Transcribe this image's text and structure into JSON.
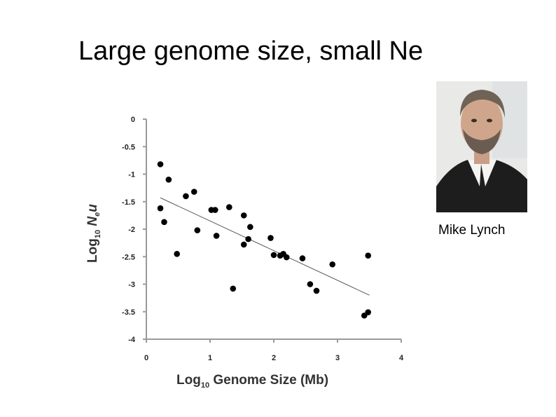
{
  "slide": {
    "title": "Large genome size, small Ne",
    "photo_caption": "Mike Lynch"
  },
  "chart_data": {
    "type": "scatter",
    "title": "",
    "xlabel_prefix": "Log",
    "xlabel_sub": "10",
    "xlabel_rest": " Genome Size (Mb)",
    "ylabel_prefix": "Log",
    "ylabel_sub": "10",
    "ylabel_rest_1": " N",
    "ylabel_rest_sub": "e",
    "ylabel_rest_2": "u",
    "xlim": [
      0,
      4
    ],
    "ylim": [
      -4,
      0
    ],
    "x_ticks": [
      0,
      1,
      2,
      3,
      4
    ],
    "x_tick_labels": [
      "0",
      "1",
      "2",
      "3",
      "4"
    ],
    "y_ticks": [
      0,
      -0.5,
      -1,
      -1.5,
      -2,
      -2.5,
      -3,
      -3.5,
      -4
    ],
    "y_tick_labels": [
      "0",
      "-0.5",
      "-1",
      "-1.5",
      "-2",
      "-2.5",
      "-3",
      "-3.5",
      "-4"
    ],
    "grid": false,
    "points": [
      {
        "x": 0.22,
        "y": -0.82
      },
      {
        "x": 0.22,
        "y": -1.62
      },
      {
        "x": 0.28,
        "y": -1.87
      },
      {
        "x": 0.35,
        "y": -1.1
      },
      {
        "x": 0.48,
        "y": -2.45
      },
      {
        "x": 0.62,
        "y": -1.4
      },
      {
        "x": 0.75,
        "y": -1.32
      },
      {
        "x": 0.8,
        "y": -2.02
      },
      {
        "x": 1.02,
        "y": -1.65
      },
      {
        "x": 1.08,
        "y": -1.65
      },
      {
        "x": 1.1,
        "y": -2.12
      },
      {
        "x": 1.3,
        "y": -1.6
      },
      {
        "x": 1.36,
        "y": -3.08
      },
      {
        "x": 1.53,
        "y": -1.75
      },
      {
        "x": 1.53,
        "y": -2.28
      },
      {
        "x": 1.6,
        "y": -2.18
      },
      {
        "x": 1.63,
        "y": -1.96
      },
      {
        "x": 1.95,
        "y": -2.16
      },
      {
        "x": 2.0,
        "y": -2.47
      },
      {
        "x": 2.1,
        "y": -2.48
      },
      {
        "x": 2.15,
        "y": -2.45
      },
      {
        "x": 2.2,
        "y": -2.51
      },
      {
        "x": 2.45,
        "y": -2.53
      },
      {
        "x": 2.57,
        "y": -3.0
      },
      {
        "x": 2.67,
        "y": -3.12
      },
      {
        "x": 2.92,
        "y": -2.64
      },
      {
        "x": 3.42,
        "y": -3.57
      },
      {
        "x": 3.48,
        "y": -3.51
      },
      {
        "x": 3.48,
        "y": -2.48
      }
    ],
    "trendline": {
      "x": [
        0.22,
        3.5
      ],
      "y": [
        -1.43,
        -3.2
      ]
    }
  }
}
